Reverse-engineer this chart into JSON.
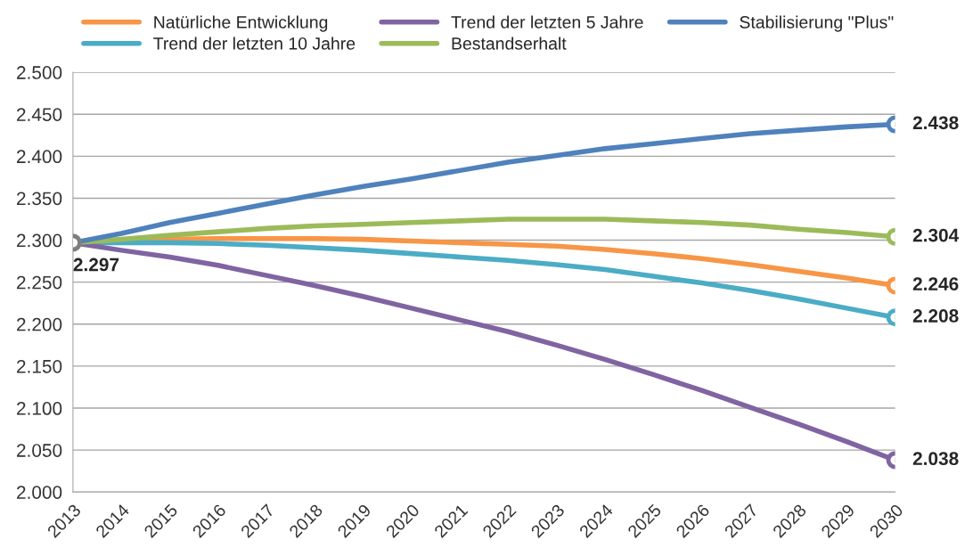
{
  "chart_data": {
    "type": "line",
    "categories": [
      "2013",
      "2014",
      "2015",
      "2016",
      "2017",
      "2018",
      "2019",
      "2020",
      "2021",
      "2022",
      "2023",
      "2024",
      "2025",
      "2026",
      "2027",
      "2028",
      "2029",
      "2030"
    ],
    "series": [
      {
        "name": "Natürliche Entwicklung",
        "color": "#f79646",
        "values": [
          2.297,
          2.299,
          2.301,
          2.302,
          2.302,
          2.302,
          2.301,
          2.299,
          2.297,
          2.295,
          2.293,
          2.289,
          2.284,
          2.278,
          2.271,
          2.263,
          2.255,
          2.246
        ],
        "value_labels": [
          null,
          null,
          null,
          null,
          null,
          null,
          null,
          null,
          null,
          null,
          null,
          null,
          null,
          null,
          null,
          null,
          null,
          "2.246"
        ]
      },
      {
        "name": "Trend der letzten 10 Jahre",
        "color": "#4bacc6",
        "values": [
          2.297,
          2.297,
          2.297,
          2.296,
          2.294,
          2.291,
          2.288,
          2.284,
          2.28,
          2.276,
          2.271,
          2.265,
          2.257,
          2.249,
          2.24,
          2.23,
          2.219,
          2.208
        ],
        "value_labels": [
          null,
          null,
          null,
          null,
          null,
          null,
          null,
          null,
          null,
          null,
          null,
          null,
          null,
          null,
          null,
          null,
          null,
          "2.208"
        ]
      },
      {
        "name": "Trend der letzten 5 Jahre",
        "color": "#8064a2",
        "values": [
          2.297,
          2.288,
          2.28,
          2.27,
          2.258,
          2.246,
          2.233,
          2.219,
          2.205,
          2.191,
          2.175,
          2.158,
          2.14,
          2.121,
          2.101,
          2.081,
          2.06,
          2.038
        ],
        "value_labels": [
          null,
          null,
          null,
          null,
          null,
          null,
          null,
          null,
          null,
          null,
          null,
          null,
          null,
          null,
          null,
          null,
          null,
          "2.038"
        ]
      },
      {
        "name": "Bestandserhalt",
        "color": "#9bbb59",
        "values": [
          2.297,
          2.301,
          2.306,
          2.31,
          2.314,
          2.317,
          2.319,
          2.321,
          2.323,
          2.325,
          2.325,
          2.325,
          2.323,
          2.321,
          2.318,
          2.313,
          2.309,
          2.304
        ],
        "value_labels": [
          null,
          null,
          null,
          null,
          null,
          null,
          null,
          null,
          null,
          null,
          null,
          null,
          null,
          null,
          null,
          null,
          null,
          "2.304"
        ]
      },
      {
        "name": "Stabilisierung \"Plus\"",
        "color": "#4f81bd",
        "values": [
          2.297,
          2.308,
          2.321,
          2.332,
          2.343,
          2.354,
          2.364,
          2.373,
          2.383,
          2.393,
          2.401,
          2.409,
          2.415,
          2.421,
          2.427,
          2.431,
          2.435,
          2.438
        ],
        "value_labels": [
          null,
          null,
          null,
          null,
          null,
          null,
          null,
          null,
          null,
          null,
          null,
          null,
          null,
          null,
          null,
          null,
          null,
          "2.438"
        ]
      }
    ],
    "ylim": [
      2.0,
      2.5
    ],
    "yticks": [
      {
        "value": 2.0,
        "label": "2.000"
      },
      {
        "value": 2.05,
        "label": "2.050"
      },
      {
        "value": 2.1,
        "label": "2.100"
      },
      {
        "value": 2.15,
        "label": "2.150"
      },
      {
        "value": 2.2,
        "label": "2.200"
      },
      {
        "value": 2.25,
        "label": "2.250"
      },
      {
        "value": 2.3,
        "label": "2.300"
      },
      {
        "value": 2.35,
        "label": "2.350"
      },
      {
        "value": 2.4,
        "label": "2.400"
      },
      {
        "value": 2.45,
        "label": "2.450"
      },
      {
        "value": 2.5,
        "label": "2.500"
      }
    ],
    "annotations": [
      {
        "text": "2.297",
        "x": "2013",
        "y": 2.297
      }
    ],
    "grid": "y",
    "legend": "top",
    "marker": "none",
    "line_style": "solid"
  }
}
